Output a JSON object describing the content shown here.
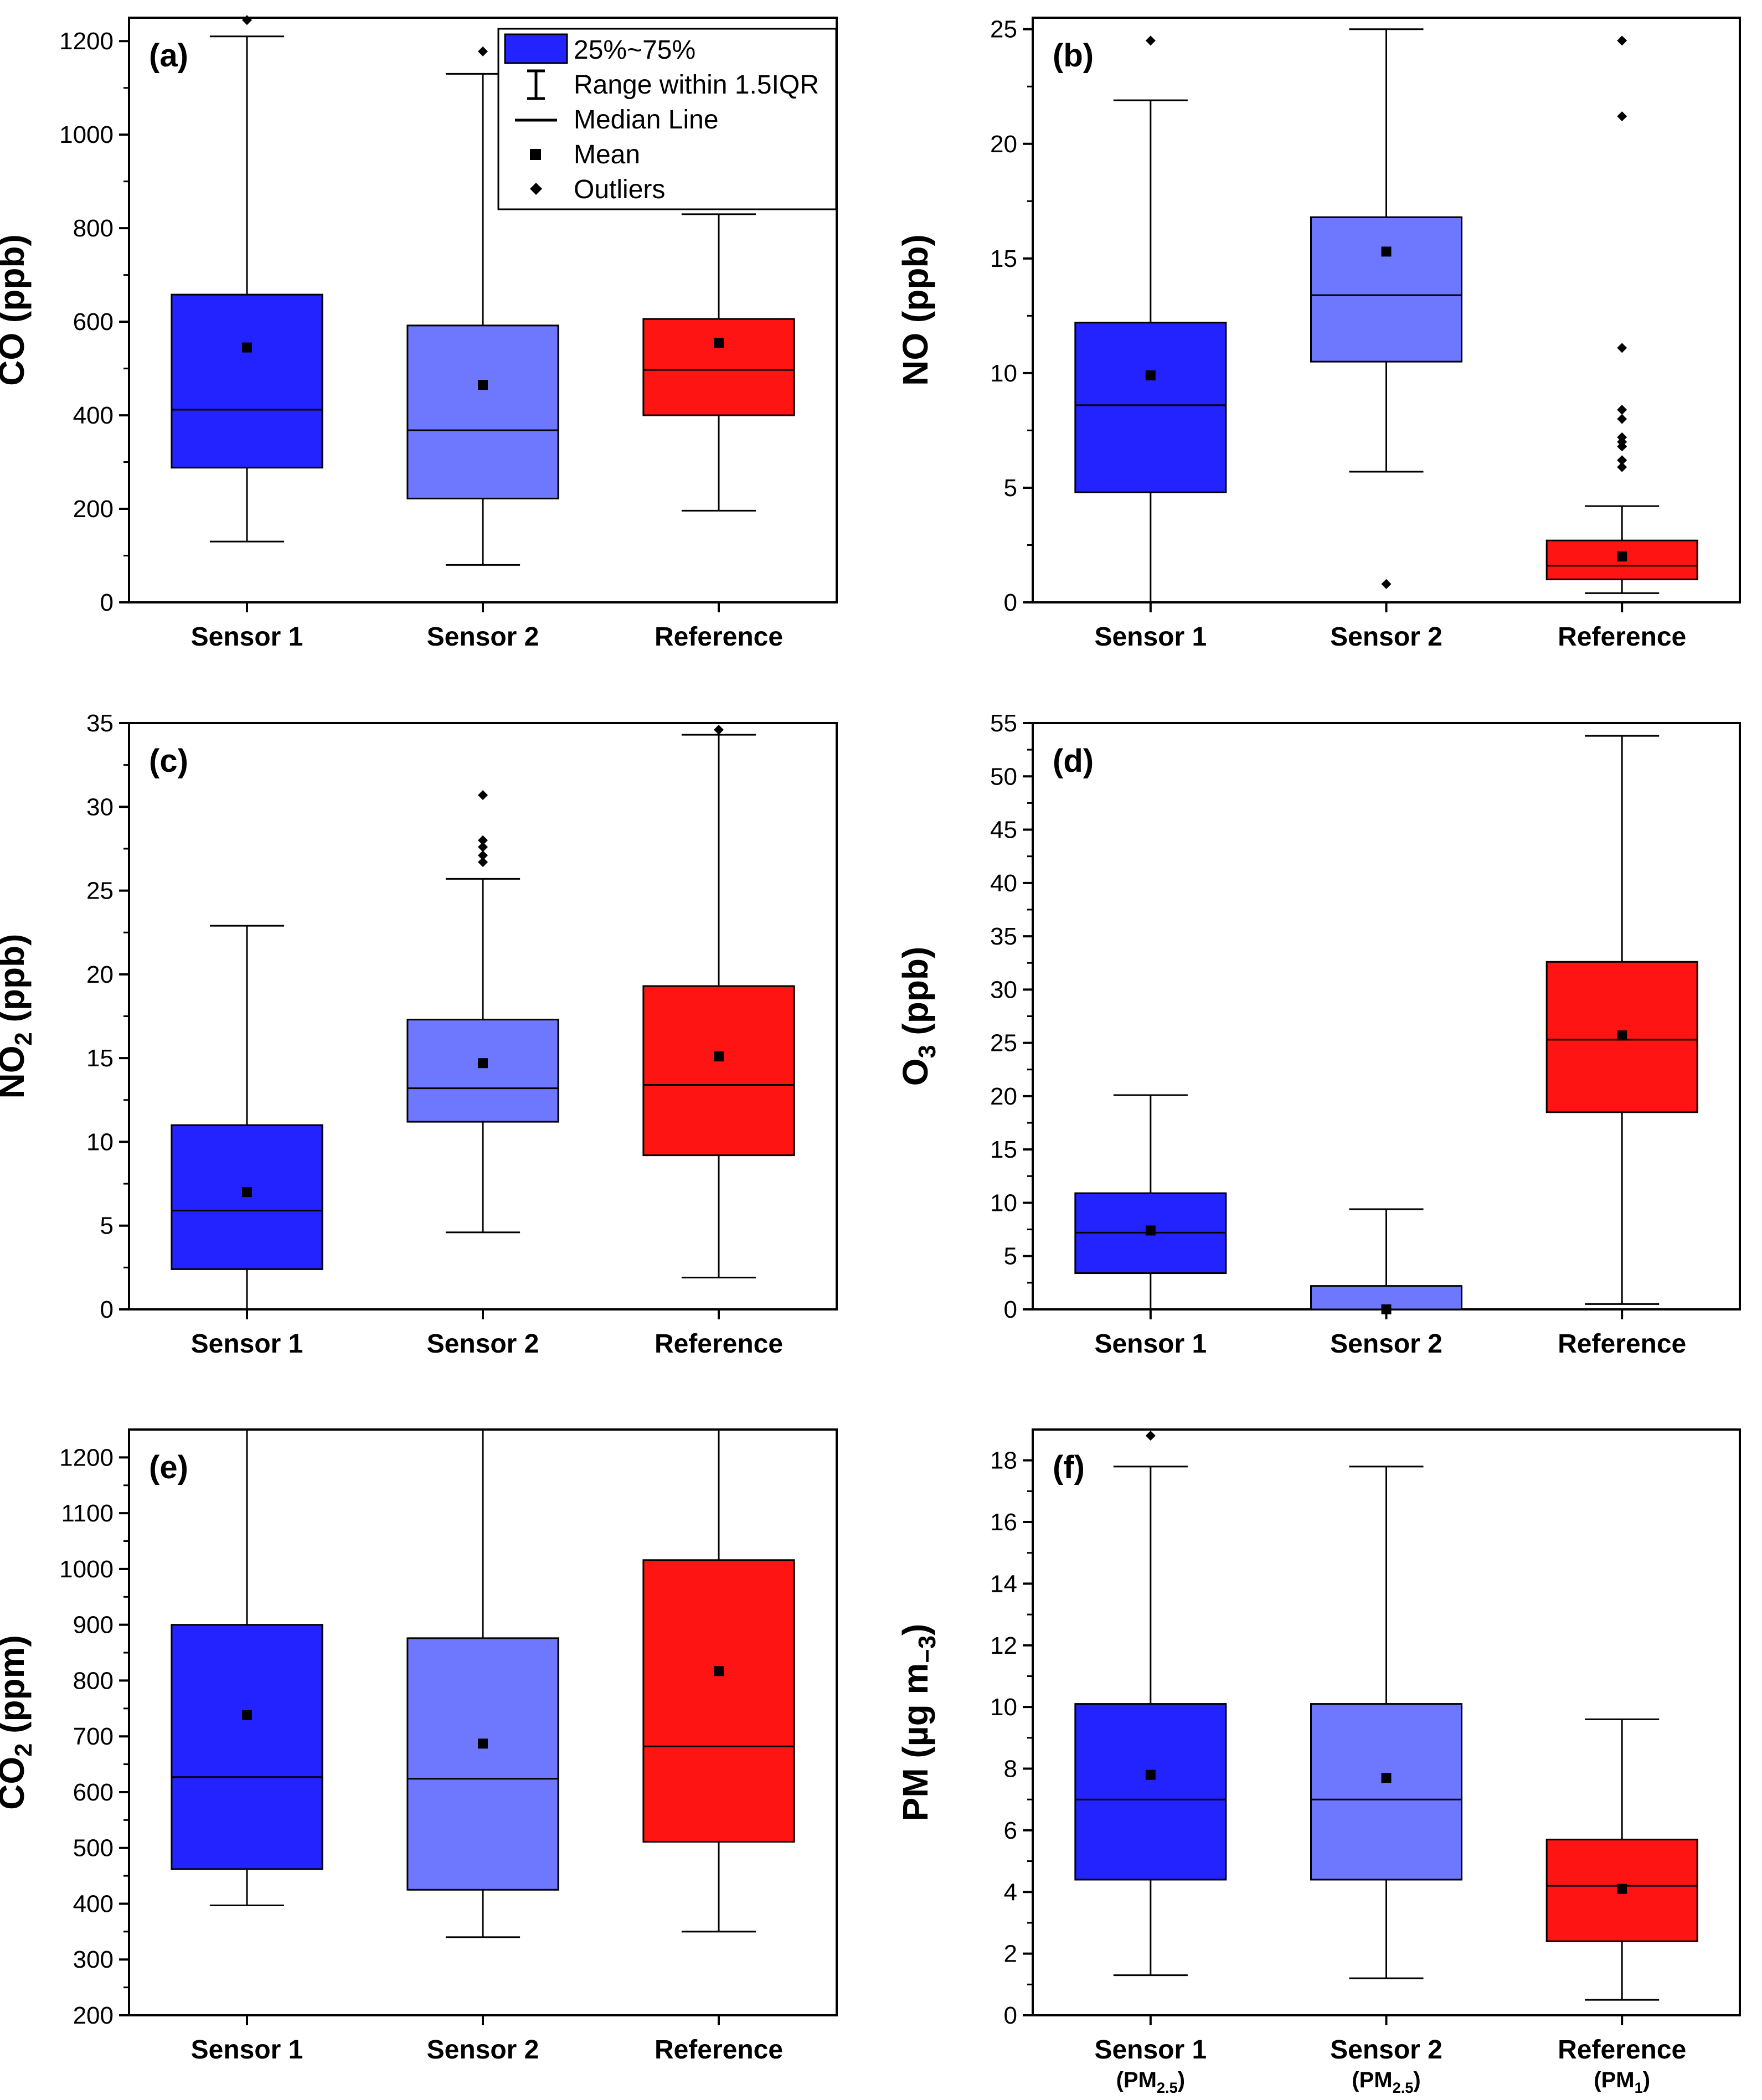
{
  "legend": {
    "items": [
      {
        "key": "box",
        "label": "25%~75%"
      },
      {
        "key": "whisker",
        "label": "Range within 1.5IQR"
      },
      {
        "key": "median",
        "label": "Median Line"
      },
      {
        "key": "mean",
        "label": "Mean"
      },
      {
        "key": "outlier",
        "label": "Outliers"
      }
    ]
  },
  "colors": {
    "sensor1": "#2323ff",
    "sensor2": "#6e78ff",
    "reference": "#ff1414",
    "ink": "#000000"
  },
  "chart_data": [
    {
      "type": "box",
      "panel": "(a)",
      "ylabel": "CO (ppb)",
      "ylim": [
        0,
        1250
      ],
      "yticks": [
        0,
        200,
        400,
        600,
        800,
        1000,
        1200
      ],
      "ytick_labels": [
        "0",
        "200",
        "400",
        "600",
        "800",
        "1000",
        "1200"
      ],
      "categories": [
        {
          "label": "Sensor 1",
          "sub": "",
          "color_key": "sensor1",
          "q1": 288,
          "median": 412,
          "q3": 658,
          "mean": 545,
          "low": 130,
          "high": 1210,
          "outliers": [
            1245
          ]
        },
        {
          "label": "Sensor 2",
          "sub": "",
          "color_key": "sensor2",
          "q1": 222,
          "median": 368,
          "q3": 592,
          "mean": 465,
          "low": 80,
          "high": 1130,
          "outliers": [
            1178
          ]
        },
        {
          "label": "Reference",
          "sub": "",
          "color_key": "reference",
          "q1": 400,
          "median": 497,
          "q3": 606,
          "mean": 555,
          "low": 196,
          "high": 830,
          "outliers": []
        }
      ]
    },
    {
      "type": "box",
      "panel": "(b)",
      "ylabel": "NO (ppb)",
      "ylim": [
        0,
        25.5
      ],
      "yticks": [
        0,
        5,
        10,
        15,
        20,
        25
      ],
      "ytick_labels": [
        "0",
        "5",
        "10",
        "15",
        "20",
        "25"
      ],
      "categories": [
        {
          "label": "Sensor 1",
          "sub": "",
          "color_key": "sensor1",
          "q1": 4.8,
          "median": 8.6,
          "q3": 12.2,
          "mean": 9.9,
          "low": 0,
          "high": 21.9,
          "outliers": [
            24.5
          ]
        },
        {
          "label": "Sensor 2",
          "sub": "",
          "color_key": "sensor2",
          "q1": 10.5,
          "median": 13.4,
          "q3": 16.8,
          "mean": 15.3,
          "low": 5.7,
          "high": 25.0,
          "outliers": [
            0.8
          ]
        },
        {
          "label": "Reference",
          "sub": "",
          "color_key": "reference",
          "q1": 1.0,
          "median": 1.6,
          "q3": 2.7,
          "mean": 2.0,
          "low": 0.4,
          "high": 4.2,
          "outliers": [
            24.5,
            21.2,
            11.1,
            8.4,
            8.0,
            7.2,
            7.0,
            6.8,
            6.2,
            5.9
          ]
        }
      ]
    },
    {
      "type": "box",
      "panel": "(c)",
      "ylabel": "NO2 (ppb)",
      "ylabel_parts": [
        "NO",
        "2",
        " (ppb)"
      ],
      "ylim": [
        0,
        35
      ],
      "yticks": [
        0,
        5,
        10,
        15,
        20,
        25,
        30,
        35
      ],
      "ytick_labels": [
        "0",
        "5",
        "10",
        "15",
        "20",
        "25",
        "30",
        "35"
      ],
      "categories": [
        {
          "label": "Sensor 1",
          "sub": "",
          "color_key": "sensor1",
          "q1": 2.4,
          "median": 5.9,
          "q3": 11.0,
          "mean": 7.0,
          "low": 0,
          "high": 22.9,
          "outliers": []
        },
        {
          "label": "Sensor 2",
          "sub": "",
          "color_key": "sensor2",
          "q1": 11.2,
          "median": 13.2,
          "q3": 17.3,
          "mean": 14.7,
          "low": 4.6,
          "high": 25.7,
          "outliers": [
            30.7,
            28.0,
            27.6,
            27.1,
            26.7
          ]
        },
        {
          "label": "Reference",
          "sub": "",
          "color_key": "reference",
          "q1": 9.2,
          "median": 13.4,
          "q3": 19.3,
          "mean": 15.1,
          "low": 1.9,
          "high": 34.3,
          "outliers": [
            34.6
          ]
        }
      ]
    },
    {
      "type": "box",
      "panel": "(d)",
      "ylabel": "O3 (ppb)",
      "ylabel_parts": [
        "O",
        "3",
        " (ppb)"
      ],
      "ylim": [
        0,
        55
      ],
      "yticks": [
        0,
        5,
        10,
        15,
        20,
        25,
        30,
        35,
        40,
        45,
        50,
        55
      ],
      "ytick_labels": [
        "0",
        "5",
        "10",
        "15",
        "20",
        "25",
        "30",
        "35",
        "40",
        "45",
        "50",
        "55"
      ],
      "categories": [
        {
          "label": "Sensor 1",
          "sub": "",
          "color_key": "sensor1",
          "q1": 3.4,
          "median": 7.2,
          "q3": 10.9,
          "mean": 7.4,
          "low": 0,
          "high": 20.1,
          "outliers": []
        },
        {
          "label": "Sensor 2",
          "sub": "",
          "color_key": "sensor2",
          "q1": 0,
          "median": 0,
          "q3": 2.2,
          "mean": 0,
          "low": 0,
          "high": 9.4,
          "outliers": []
        },
        {
          "label": "Reference",
          "sub": "",
          "color_key": "reference",
          "q1": 18.5,
          "median": 25.3,
          "q3": 32.6,
          "mean": 25.7,
          "low": 0.5,
          "high": 53.8,
          "outliers": []
        }
      ]
    },
    {
      "type": "box",
      "panel": "(e)",
      "ylabel": "CO2 (ppm)",
      "ylabel_parts": [
        "CO",
        "2",
        " (ppm)"
      ],
      "ylim": [
        200,
        1250
      ],
      "yticks": [
        200,
        300,
        400,
        500,
        600,
        700,
        800,
        900,
        1000,
        1100,
        1200
      ],
      "ytick_labels": [
        "200",
        "300",
        "400",
        "500",
        "600",
        "700",
        "800",
        "900",
        "1000",
        "1100",
        "1200"
      ],
      "categories": [
        {
          "label": "Sensor 1",
          "sub": "",
          "color_key": "sensor1",
          "q1": 462,
          "median": 627,
          "q3": 900,
          "mean": 738,
          "low": 397,
          "high": 1250,
          "outliers": []
        },
        {
          "label": "Sensor 2",
          "sub": "",
          "color_key": "sensor2",
          "q1": 425,
          "median": 624,
          "q3": 876,
          "mean": 687,
          "low": 340,
          "high": 1250,
          "outliers": []
        },
        {
          "label": "Reference",
          "sub": "",
          "color_key": "reference",
          "q1": 511,
          "median": 682,
          "q3": 1016,
          "mean": 817,
          "low": 350,
          "high": 1250,
          "outliers": []
        }
      ]
    },
    {
      "type": "box",
      "panel": "(f)",
      "ylabel": "PM (µg m−3)",
      "ylabel_parts": [
        "PM (µg m",
        "−3",
        ")"
      ],
      "ylim": [
        0,
        19
      ],
      "yticks": [
        0,
        2,
        4,
        6,
        8,
        10,
        12,
        14,
        16,
        18
      ],
      "ytick_labels": [
        "0",
        "2",
        "4",
        "6",
        "8",
        "10",
        "12",
        "14",
        "16",
        "18"
      ],
      "categories": [
        {
          "label": "Sensor 1",
          "sub": "(PM2.5)",
          "sub_parts": [
            "(PM",
            "2.5",
            ")"
          ],
          "color_key": "sensor1",
          "q1": 4.4,
          "median": 7.0,
          "q3": 10.1,
          "mean": 7.8,
          "low": 1.3,
          "high": 17.8,
          "outliers": [
            18.8
          ]
        },
        {
          "label": "Sensor 2",
          "sub": "(PM2.5)",
          "sub_parts": [
            "(PM",
            "2.5",
            ")"
          ],
          "color_key": "sensor2",
          "q1": 4.4,
          "median": 7.0,
          "q3": 10.1,
          "mean": 7.7,
          "low": 1.2,
          "high": 17.8,
          "outliers": []
        },
        {
          "label": "Reference",
          "sub": "(PM1)",
          "sub_parts": [
            "(PM",
            "1",
            ")"
          ],
          "color_key": "reference",
          "q1": 2.4,
          "median": 4.2,
          "q3": 5.7,
          "mean": 4.1,
          "low": 0.5,
          "high": 9.6,
          "outliers": []
        }
      ]
    }
  ]
}
